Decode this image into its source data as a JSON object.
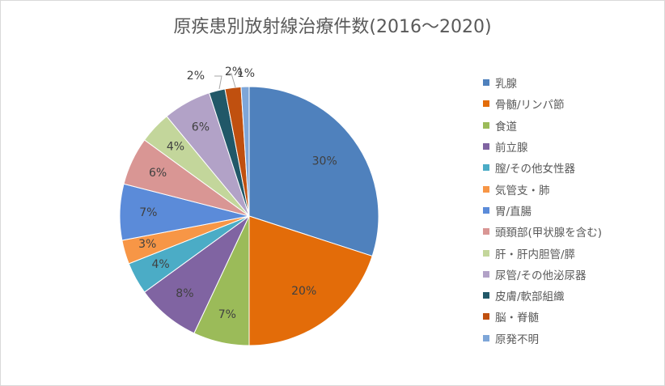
{
  "chart_data": {
    "type": "pie",
    "title": "原疾患別放射線治療件数(2016～2020)",
    "legend_position": "right",
    "slices": [
      {
        "name": "乳腺",
        "value": 30,
        "label": "30%",
        "color": "#4f81bd"
      },
      {
        "name": "骨髄/リンパ節",
        "value": 20,
        "label": "20%",
        "color": "#e36c09"
      },
      {
        "name": "食道",
        "value": 7,
        "label": "7%",
        "color": "#9bbb59"
      },
      {
        "name": "前立腺",
        "value": 8,
        "label": "8%",
        "color": "#8064a2"
      },
      {
        "name": "膣/その他女性器",
        "value": 4,
        "label": "4%",
        "color": "#4bacc6"
      },
      {
        "name": "気管支・肺",
        "value": 3,
        "label": "3%",
        "color": "#f79646"
      },
      {
        "name": "胃/直腸",
        "value": 7,
        "label": "7%",
        "color": "#5b8bd9"
      },
      {
        "name": "頭頚部(甲状腺を含む)",
        "value": 6,
        "label": "6%",
        "color": "#d99694"
      },
      {
        "name": "肝・肝内胆管/膵",
        "value": 4,
        "label": "4%",
        "color": "#c3d69b"
      },
      {
        "name": "尿管/その他泌尿器",
        "value": 6,
        "label": "6%",
        "color": "#b2a2c7"
      },
      {
        "name": "皮膚/軟部組織",
        "value": 2,
        "label": "2%",
        "color": "#215868"
      },
      {
        "name": "脳・脊髄",
        "value": 2,
        "label": "2%",
        "color": "#c0500f"
      },
      {
        "name": "原発不明",
        "value": 1,
        "label": "1%",
        "color": "#7ea6d8"
      }
    ]
  }
}
